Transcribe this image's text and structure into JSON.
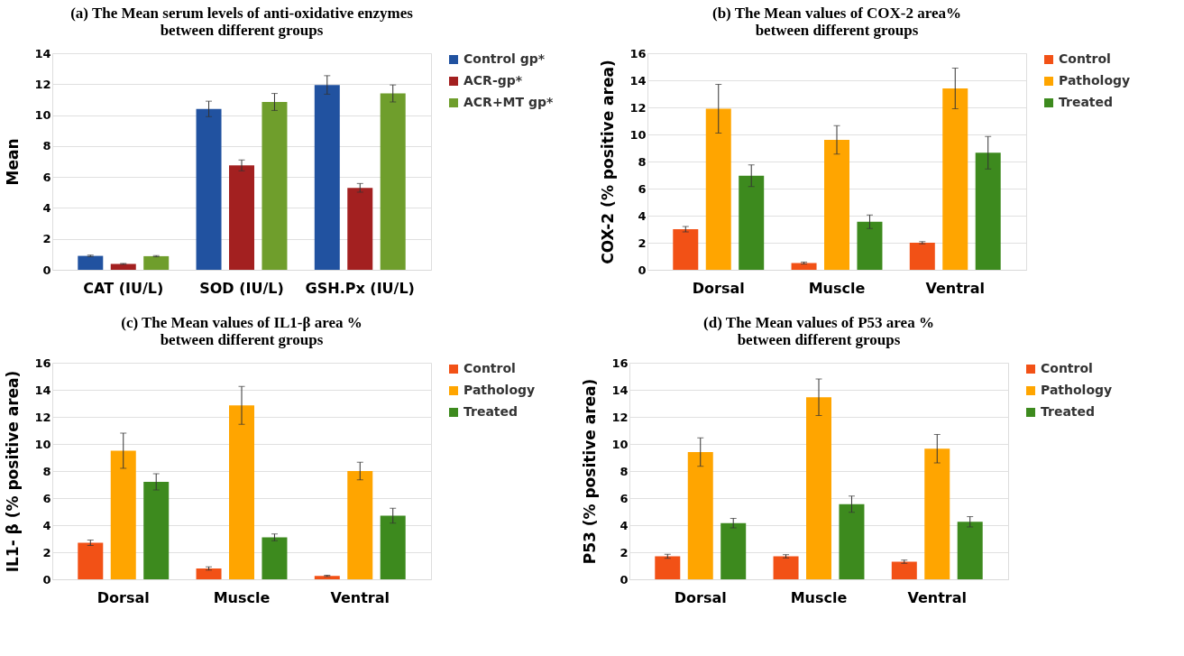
{
  "chart_data": [
    {
      "type": "bar",
      "title": "(a) The Mean serum levels of anti-oxidative enzymes\nbetween different groups",
      "ylabel": "Mean",
      "categories": [
        "CAT (IU/L)",
        "SOD  (IU/L)",
        "GSH.Px (IU/L)"
      ],
      "series": [
        {
          "name": "Control gp*",
          "color": "#2152a0",
          "values": [
            0.9,
            10.4,
            11.95
          ],
          "errors": [
            0.05,
            0.5,
            0.6
          ]
        },
        {
          "name": "ACR-gp*",
          "color": "#a32020",
          "values": [
            0.38,
            6.75,
            5.3
          ],
          "errors": [
            0.03,
            0.35,
            0.28
          ]
        },
        {
          "name": "ACR+MT gp*",
          "color": "#6f9e2c",
          "values": [
            0.88,
            10.85,
            11.4
          ],
          "errors": [
            0.04,
            0.55,
            0.55
          ]
        }
      ],
      "ylim": [
        0,
        14
      ],
      "yticks": [
        0,
        2,
        4,
        6,
        8,
        10,
        12,
        14
      ],
      "grid": "y",
      "legend": "right"
    },
    {
      "type": "bar",
      "title": "(b) The Mean values of COX-2 area%\nbetween different groups",
      "ylabel": "COX-2 (%  positive area)",
      "categories": [
        "Dorsal",
        "Muscle",
        "Ventral"
      ],
      "series": [
        {
          "name": "Control",
          "color": "#f25116",
          "values": [
            3.0,
            0.5,
            2.0
          ],
          "errors": [
            0.2,
            0.07,
            0.08
          ]
        },
        {
          "name": "Pathology",
          "color": "#ffa500",
          "values": [
            11.9,
            9.6,
            13.4
          ],
          "errors": [
            1.8,
            1.05,
            1.5
          ]
        },
        {
          "name": "Treated",
          "color": "#3d8a1e",
          "values": [
            6.95,
            3.55,
            8.65
          ],
          "errors": [
            0.8,
            0.5,
            1.2
          ]
        }
      ],
      "ylim": [
        0,
        16
      ],
      "yticks": [
        0,
        2,
        4,
        6,
        8,
        10,
        12,
        14,
        16
      ],
      "grid": "y",
      "legend": "right"
    },
    {
      "type": "bar",
      "title": "(c) The Mean values of  IL1-β area  %\nbetween different groups",
      "ylabel": "IL1- β (% positive area)",
      "categories": [
        "Dorsal",
        "Muscle",
        "Ventral"
      ],
      "series": [
        {
          "name": "Control",
          "color": "#f25116",
          "values": [
            2.7,
            0.8,
            0.25
          ],
          "errors": [
            0.2,
            0.12,
            0.05
          ]
        },
        {
          "name": "Pathology",
          "color": "#ffa500",
          "values": [
            9.5,
            12.85,
            8.0
          ],
          "errors": [
            1.3,
            1.4,
            0.65
          ]
        },
        {
          "name": "Treated",
          "color": "#3d8a1e",
          "values": [
            7.2,
            3.1,
            4.7
          ],
          "errors": [
            0.6,
            0.25,
            0.55
          ]
        }
      ],
      "ylim": [
        0,
        16
      ],
      "yticks": [
        0,
        2,
        4,
        6,
        8,
        10,
        12,
        14,
        16
      ],
      "grid": "y",
      "legend": "right"
    },
    {
      "type": "bar",
      "title": "(d) The Mean values of P53 area  %\nbetween different groups",
      "ylabel": "P53 (% positive area)",
      "categories": [
        "Dorsal",
        "Muscle",
        "Ventral"
      ],
      "series": [
        {
          "name": "Control",
          "color": "#f25116",
          "values": [
            1.7,
            1.7,
            1.3
          ],
          "errors": [
            0.15,
            0.12,
            0.12
          ]
        },
        {
          "name": "Pathology",
          "color": "#ffa500",
          "values": [
            9.4,
            13.45,
            9.65
          ],
          "errors": [
            1.05,
            1.35,
            1.05
          ]
        },
        {
          "name": "Treated",
          "color": "#3d8a1e",
          "values": [
            4.15,
            5.55,
            4.25
          ],
          "errors": [
            0.35,
            0.6,
            0.38
          ]
        }
      ],
      "ylim": [
        0,
        16
      ],
      "yticks": [
        0,
        2,
        4,
        6,
        8,
        10,
        12,
        14,
        16
      ],
      "grid": "y",
      "legend": "right"
    }
  ]
}
